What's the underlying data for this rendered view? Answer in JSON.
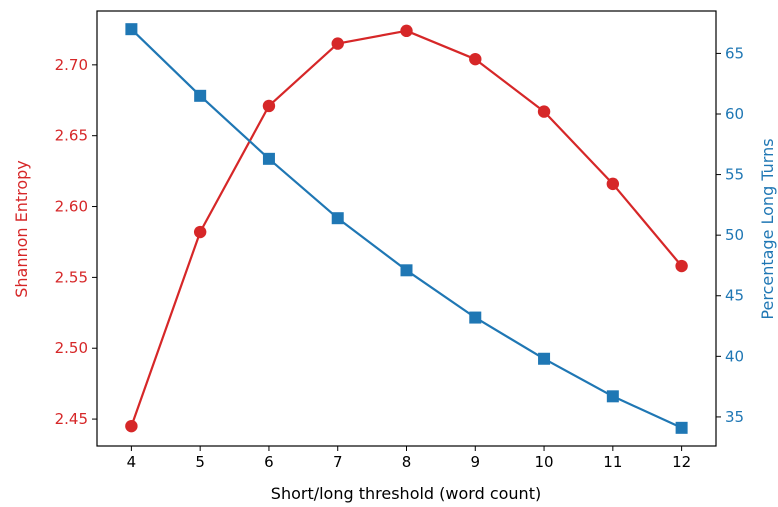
{
  "chart_data": {
    "type": "line",
    "xlabel": "Short/long threshold (word count)",
    "x": [
      4,
      5,
      6,
      7,
      8,
      9,
      10,
      11,
      12
    ],
    "xlim": [
      3.5,
      12.5
    ],
    "grid": false,
    "series": [
      {
        "name": "Shannon Entropy",
        "axis": "left",
        "color": "#d62728",
        "marker": "circle",
        "values": [
          2.445,
          2.582,
          2.671,
          2.715,
          2.724,
          2.704,
          2.667,
          2.616,
          2.558
        ]
      },
      {
        "name": "Percentage Long Turns",
        "axis": "right",
        "color": "#1f77b4",
        "marker": "square",
        "values": [
          67.0,
          61.5,
          56.3,
          51.4,
          47.1,
          43.2,
          39.8,
          36.7,
          34.1
        ]
      }
    ],
    "y_left": {
      "label": "Shannon Entropy",
      "color": "#d62728",
      "ylim": [
        2.431,
        2.738
      ],
      "ticks": [
        "2.45",
        "2.50",
        "2.55",
        "2.60",
        "2.65",
        "2.70"
      ]
    },
    "y_right": {
      "label": "Percentage Long Turns",
      "color": "#1f77b4",
      "ylim": [
        32.6,
        68.5
      ],
      "ticks": [
        "35",
        "40",
        "45",
        "50",
        "55",
        "60",
        "65"
      ]
    }
  }
}
